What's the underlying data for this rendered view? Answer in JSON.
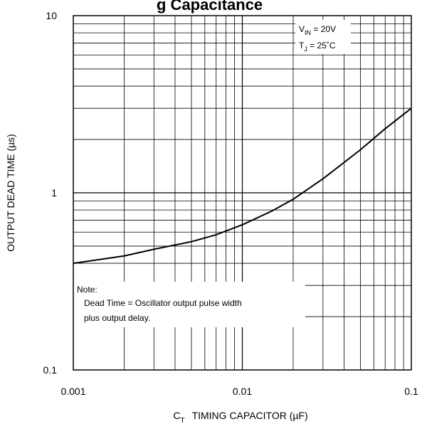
{
  "chart_data": {
    "type": "line",
    "title": "g Capacitance",
    "xlabel_main": "C",
    "xlabel_sub": "T",
    "xlabel_rest": "TIMING CAPACITOR (µF)",
    "ylabel": "OUTPUT DEAD TIME (µs)",
    "x_scale": "log",
    "y_scale": "log",
    "xlim": [
      0.001,
      0.1
    ],
    "ylim": [
      0.1,
      10
    ],
    "x_ticks": [
      {
        "value": 0.001,
        "label": "0.001"
      },
      {
        "value": 0.01,
        "label": "0.01"
      },
      {
        "value": 0.1,
        "label": "0.1"
      }
    ],
    "y_ticks": [
      {
        "value": 0.1,
        "label": "0.1"
      },
      {
        "value": 1,
        "label": "1"
      },
      {
        "value": 10,
        "label": "10"
      }
    ],
    "grid": true,
    "series": [
      {
        "x": [
          0.001,
          0.002,
          0.003,
          0.005,
          0.007,
          0.01,
          0.015,
          0.02,
          0.03,
          0.05,
          0.07,
          0.1
        ],
        "y": [
          0.4,
          0.44,
          0.48,
          0.53,
          0.58,
          0.66,
          0.79,
          0.92,
          1.2,
          1.75,
          2.3,
          3.0
        ]
      }
    ],
    "conditions": [
      {
        "main": "V",
        "sub": "IN",
        "rest": " = 20V"
      },
      {
        "main": "T",
        "sub": "J",
        "rest": " = 25˚C"
      }
    ],
    "note": {
      "heading": "Note:",
      "lines": [
        "Dead Time = Oscillator output pulse width",
        "plus output delay."
      ]
    }
  }
}
